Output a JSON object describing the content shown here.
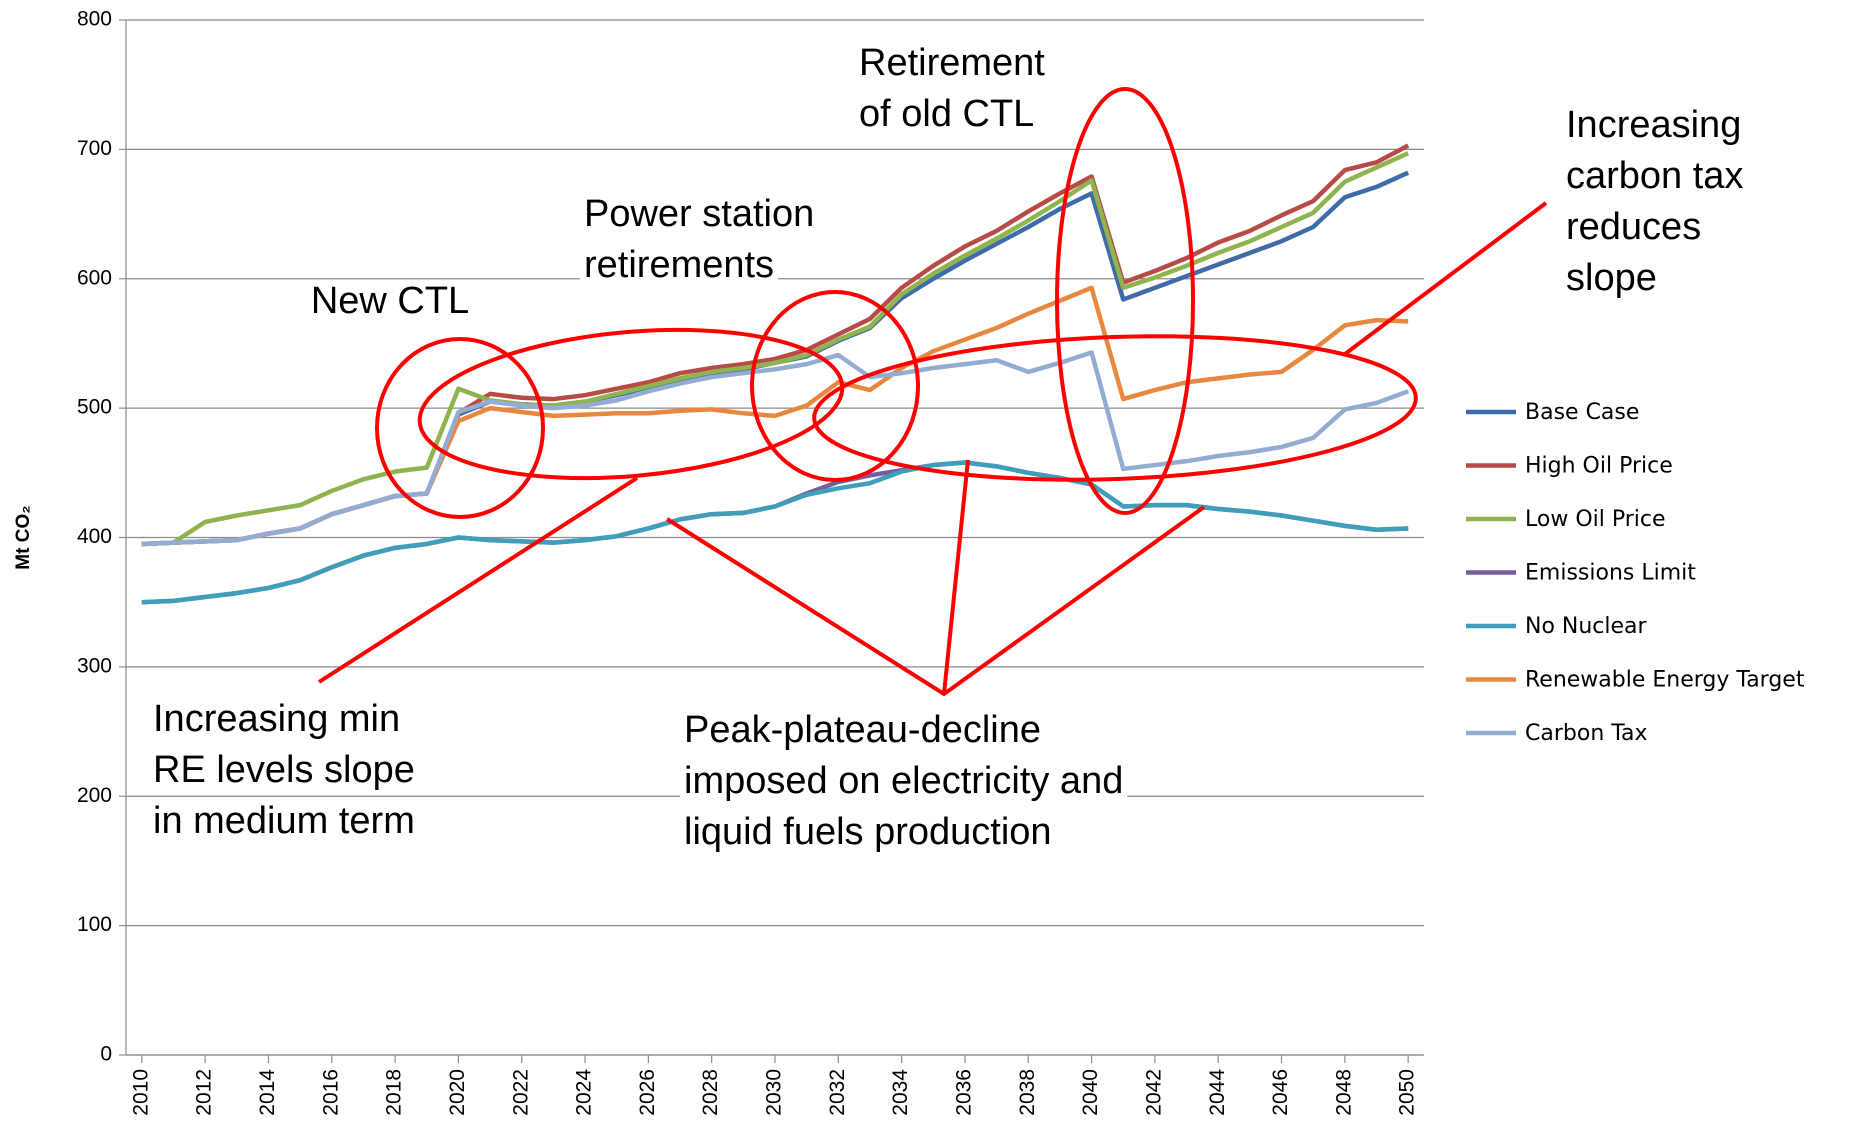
{
  "chart_data": {
    "type": "line",
    "y_label": "Mt CO₂",
    "x": [
      2010,
      2011,
      2012,
      2013,
      2014,
      2015,
      2016,
      2017,
      2018,
      2019,
      2020,
      2021,
      2022,
      2023,
      2024,
      2025,
      2026,
      2027,
      2028,
      2029,
      2030,
      2031,
      2032,
      2033,
      2034,
      2035,
      2036,
      2037,
      2038,
      2039,
      2040,
      2041,
      2042,
      2043,
      2044,
      2045,
      2046,
      2047,
      2048,
      2049,
      2050
    ],
    "xlim": [
      2009.5,
      2050.5
    ],
    "xticks": [
      2010,
      2012,
      2014,
      2016,
      2018,
      2020,
      2022,
      2024,
      2026,
      2028,
      2030,
      2032,
      2034,
      2036,
      2038,
      2040,
      2042,
      2044,
      2046,
      2048,
      2050
    ],
    "ylim": [
      0,
      800
    ],
    "yticks": [
      0,
      100,
      200,
      300,
      400,
      500,
      600,
      700,
      800
    ],
    "grid": true,
    "legend": "right",
    "series": [
      {
        "name": "Base Case",
        "color": "#3f6ba8",
        "values": [
          395,
          396,
          397,
          398,
          403,
          407,
          418,
          425,
          432,
          434,
          495,
          505,
          503,
          502,
          505,
          510,
          516,
          522,
          527,
          530,
          535,
          540,
          552,
          562,
          585,
          600,
          614,
          627,
          640,
          654,
          666,
          584,
          593,
          602,
          611,
          620,
          629,
          640,
          663,
          671,
          682
        ]
      },
      {
        "name": "High Oil Price",
        "color": "#b84a47",
        "values": [
          395,
          396,
          397,
          398,
          403,
          407,
          418,
          425,
          432,
          434,
          496,
          511,
          508,
          507,
          510,
          515,
          520,
          527,
          531,
          534,
          538,
          545,
          557,
          569,
          593,
          610,
          625,
          637,
          652,
          666,
          679,
          597,
          606,
          616,
          628,
          637,
          649,
          660,
          684,
          690,
          703
        ]
      },
      {
        "name": "Low Oil Price",
        "color": "#8fb44d",
        "values": [
          395,
          396,
          412,
          417,
          421,
          425,
          436,
          445,
          451,
          454,
          515,
          506,
          503,
          502,
          505,
          511,
          517,
          523,
          528,
          531,
          535,
          541,
          553,
          563,
          588,
          604,
          618,
          631,
          645,
          660,
          676,
          593,
          601,
          610,
          620,
          629,
          640,
          651,
          675,
          686,
          697
        ]
      },
      {
        "name": "Emissions Limit",
        "color": "#7a5c9e",
        "values": [
          350,
          351,
          354,
          357,
          361,
          367,
          377,
          386,
          392,
          395,
          400,
          398,
          397,
          396,
          398,
          401,
          407,
          414,
          418,
          419,
          424,
          434,
          443,
          448,
          452,
          456,
          458,
          455,
          450,
          446,
          441,
          424,
          425,
          425,
          422,
          420,
          417,
          413,
          409,
          406,
          407
        ]
      },
      {
        "name": "No Nuclear",
        "color": "#3f9fbb",
        "values": [
          350,
          351,
          354,
          357,
          361,
          367,
          377,
          386,
          392,
          395,
          400,
          398,
          397,
          396,
          398,
          401,
          407,
          414,
          418,
          419,
          424,
          433,
          438,
          442,
          451,
          456,
          458,
          455,
          450,
          446,
          441,
          424,
          425,
          425,
          422,
          420,
          417,
          413,
          409,
          406,
          407
        ]
      },
      {
        "name": "Renewable Energy Target",
        "color": "#e8883e",
        "values": [
          395,
          396,
          397,
          398,
          403,
          407,
          418,
          425,
          432,
          434,
          490,
          500,
          497,
          494,
          495,
          496,
          496,
          498,
          499,
          496,
          494,
          502,
          520,
          514,
          531,
          544,
          553,
          562,
          573,
          583,
          593,
          507,
          514,
          520,
          523,
          526,
          528,
          545,
          564,
          568,
          567
        ]
      },
      {
        "name": "Carbon Tax",
        "color": "#93acd3",
        "values": [
          395,
          396,
          397,
          398,
          403,
          407,
          418,
          425,
          432,
          434,
          497,
          505,
          502,
          500,
          502,
          506,
          513,
          519,
          524,
          527,
          530,
          534,
          541,
          524,
          527,
          531,
          534,
          537,
          528,
          535,
          543,
          453,
          456,
          459,
          463,
          466,
          470,
          477,
          499,
          504,
          513
        ]
      }
    ],
    "annotations": [
      [
        "New CTL"
      ],
      [
        "Power station",
        "retirements"
      ],
      [
        "Retirement",
        "of old CTL"
      ],
      [
        "Increasing",
        "carbon tax",
        "reduces",
        "slope"
      ],
      [
        "Increasing min",
        "RE levels slope",
        "in medium term"
      ],
      [
        "Peak-plateau-decline",
        "imposed on electricity and",
        "liquid fuels production"
      ]
    ]
  }
}
